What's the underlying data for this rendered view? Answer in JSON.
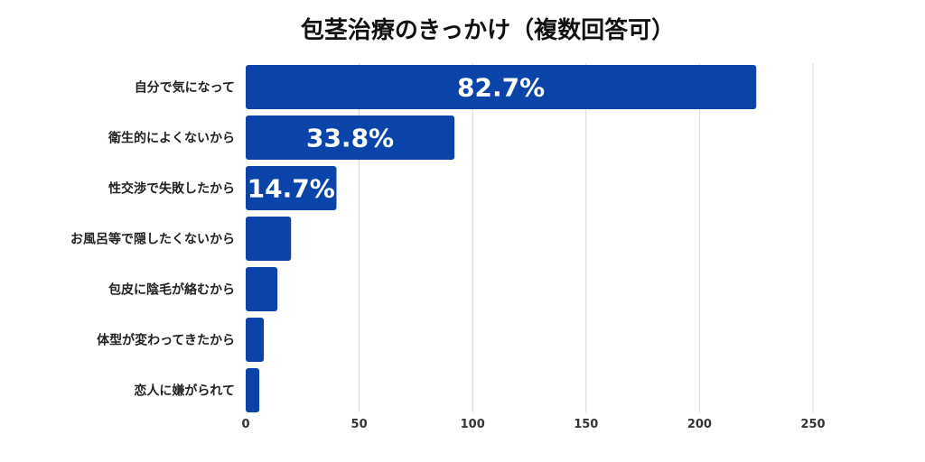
{
  "chart_data": {
    "type": "bar",
    "orientation": "horizontal",
    "title": "包茎治療のきっかけ（複数回答可）",
    "categories": [
      "自分で気になって",
      "衛生的によくないから",
      "性交渉で失敗したから",
      "お風呂等で隠したくないから",
      "包皮に陰毛が絡むから",
      "体型が変わってきたから",
      "恋人に嫌がられて"
    ],
    "values": [
      225,
      92,
      40,
      20,
      14,
      8,
      6
    ],
    "data_labels": [
      "82.7%",
      "33.8%",
      "14.7%",
      "",
      "",
      "",
      ""
    ],
    "xlim": [
      0,
      250
    ],
    "x_ticks": [
      0,
      50,
      100,
      150,
      200,
      250
    ],
    "grid": true,
    "bar_color": "#0b44a8"
  }
}
